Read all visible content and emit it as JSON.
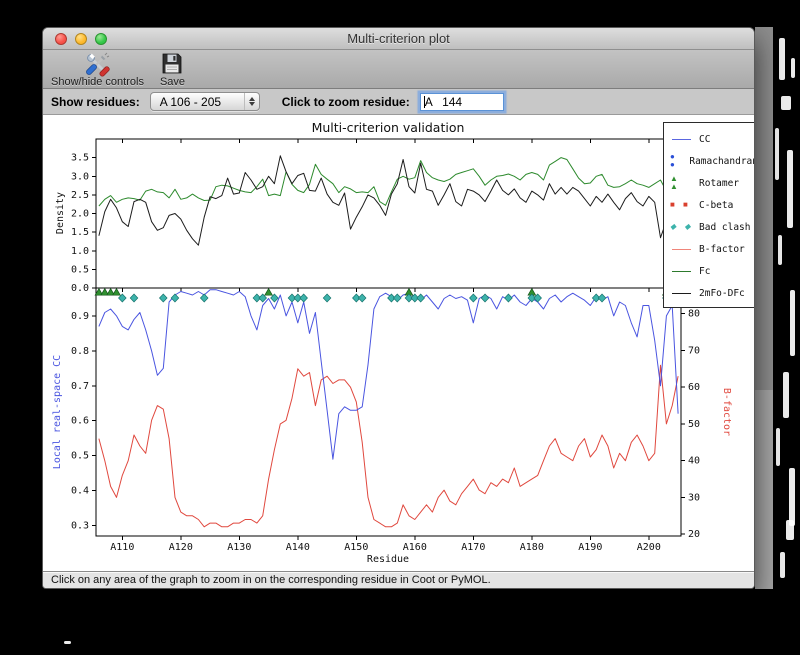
{
  "window": {
    "title": "Multi-criterion plot"
  },
  "toolbar": {
    "buttons": [
      {
        "label": "Show/hide controls",
        "icon": "tools-icon"
      },
      {
        "label": "Save",
        "icon": "save-icon"
      }
    ]
  },
  "controls": {
    "show_residues_label": "Show residues:",
    "show_residues_value": "A 106 - 205",
    "zoom_residue_label": "Click to zoom residue:",
    "zoom_residue_value": "A   144"
  },
  "statusbar": {
    "text": "Click on any area of the graph to zoom in on the corresponding residue in Coot or PyMOL."
  },
  "legend": {
    "entries": [
      {
        "label": "CC",
        "sample": "line",
        "color": "#5a66e0"
      },
      {
        "label": "Ramachandran",
        "sample": "dots",
        "color": "#2a4fd7"
      },
      {
        "label": "Rotamer",
        "sample": "triangles",
        "color": "#2f8f2f"
      },
      {
        "label": "C-beta",
        "sample": "squares",
        "color": "#d9402e"
      },
      {
        "label": "Bad clash",
        "sample": "diamonds",
        "color": "#3db3ab"
      },
      {
        "label": "B-factor",
        "sample": "line",
        "color": "#f0857a"
      },
      {
        "label": "Fc",
        "sample": "line",
        "color": "#2d7a2d"
      },
      {
        "label": "2mFo-DFc",
        "sample": "line",
        "color": "#1c1c1c"
      }
    ]
  },
  "chart_data": [
    {
      "type": "line",
      "title": "Multi-criterion validation",
      "ylabel": "Density",
      "ylim": [
        0,
        4
      ],
      "yticks": [
        0.0,
        0.5,
        1.0,
        1.5,
        2.0,
        2.5,
        3.0,
        3.5
      ],
      "xlim": [
        105.5,
        205.5
      ],
      "x_start": 106,
      "series": [
        {
          "name": "Fc",
          "color": "#2d8a2d",
          "values": [
            2.2,
            2.38,
            2.48,
            2.3,
            2.38,
            2.42,
            2.4,
            2.36,
            2.6,
            2.65,
            2.58,
            2.56,
            2.42,
            2.65,
            2.38,
            2.42,
            2.52,
            2.42,
            2.35,
            2.36,
            2.72,
            2.76,
            2.74,
            2.68,
            2.62,
            2.58,
            2.56,
            2.72,
            2.92,
            2.48,
            2.52,
            2.48,
            3.12,
            2.78,
            2.62,
            2.56,
            2.78,
            3.32,
            3.05,
            2.92,
            2.8,
            2.56,
            2.72,
            2.66,
            2.56,
            2.58,
            2.56,
            2.72,
            2.32,
            2.22,
            2.58,
            2.92,
            3.0,
            2.92,
            2.96,
            3.42,
            3.1,
            2.96,
            2.9,
            2.86,
            2.92,
            3.05,
            3.1,
            3.15,
            3.2,
            3.0,
            2.76,
            2.9,
            3.0,
            3.02,
            3.06,
            3.0,
            2.9,
            3.05,
            3.1,
            3.05,
            2.9,
            3.3,
            3.4,
            3.5,
            3.45,
            3.2,
            2.95,
            2.8,
            2.82,
            3.0,
            3.05,
            2.76,
            2.7,
            2.72,
            2.8,
            2.9,
            2.8,
            2.76,
            2.7,
            2.8,
            2.9,
            2.6,
            2.2,
            2.76
          ]
        },
        {
          "name": "2mFo-DFc",
          "color": "#1c1c1c",
          "values": [
            1.4,
            2.05,
            2.38,
            2.15,
            1.78,
            1.65,
            2.32,
            2.38,
            2.3,
            1.78,
            1.55,
            1.62,
            1.95,
            2.0,
            1.85,
            1.55,
            1.32,
            1.15,
            1.9,
            2.45,
            2.4,
            2.48,
            2.95,
            2.52,
            2.55,
            3.1,
            2.9,
            2.65,
            2.72,
            3.0,
            2.8,
            3.55,
            3.12,
            2.8,
            3.02,
            3.08,
            2.62,
            2.6,
            2.95,
            2.52,
            2.3,
            2.22,
            2.55,
            1.58,
            1.9,
            2.18,
            2.5,
            2.42,
            2.22,
            1.95,
            2.52,
            2.8,
            3.45,
            2.72,
            2.55,
            3.35,
            2.65,
            2.6,
            2.22,
            2.5,
            2.8,
            2.32,
            2.2,
            2.65,
            2.6,
            2.5,
            2.32,
            2.6,
            2.9,
            2.62,
            2.5,
            2.66,
            2.42,
            2.3,
            2.6,
            2.5,
            2.36,
            2.8,
            2.52,
            2.7,
            2.52,
            2.7,
            2.6,
            2.4,
            2.2,
            2.46,
            2.3,
            2.52,
            2.3,
            2.1,
            2.4,
            2.56,
            2.32,
            2.2,
            2.46,
            2.3,
            1.35,
            1.8,
            1.15,
            2.2
          ]
        }
      ]
    },
    {
      "type": "line+scatter",
      "xlabel": "Residue",
      "ylabel_left": "Local real-space CC",
      "ylabel_right": "B-factor",
      "ylim_left": [
        0.27,
        0.98
      ],
      "ylim_right": [
        19.5,
        87
      ],
      "yticks_left": [
        0.3,
        0.4,
        0.5,
        0.6,
        0.7,
        0.8,
        0.9
      ],
      "yticks_right": [
        20,
        30,
        40,
        50,
        60,
        70,
        80
      ],
      "xlim": [
        105.5,
        205.5
      ],
      "xtick_values": [
        110,
        120,
        130,
        140,
        150,
        160,
        170,
        180,
        190,
        200
      ],
      "xtick_labels": [
        "A110",
        "A120",
        "A130",
        "A140",
        "A150",
        "A160",
        "A170",
        "A180",
        "A190",
        "A200"
      ],
      "x_start": 106,
      "series": [
        {
          "name": "CC",
          "axis": "left",
          "color": "#4a55e0",
          "values": [
            0.87,
            0.91,
            0.92,
            0.9,
            0.87,
            0.86,
            0.89,
            0.91,
            0.86,
            0.8,
            0.73,
            0.75,
            0.94,
            0.96,
            0.97,
            0.965,
            0.96,
            0.97,
            0.96,
            0.975,
            0.975,
            0.97,
            0.965,
            0.96,
            0.97,
            0.955,
            0.9,
            0.86,
            0.93,
            0.95,
            0.92,
            0.96,
            0.9,
            0.94,
            0.88,
            0.94,
            0.85,
            0.91,
            0.77,
            0.63,
            0.49,
            0.62,
            0.64,
            0.63,
            0.63,
            0.64,
            0.76,
            0.92,
            0.955,
            0.965,
            0.955,
            0.945,
            0.96,
            0.965,
            0.955,
            0.945,
            0.96,
            0.94,
            0.92,
            0.95,
            0.96,
            0.95,
            0.955,
            0.945,
            0.88,
            0.95,
            0.96,
            0.95,
            0.92,
            0.955,
            0.945,
            0.96,
            0.94,
            0.93,
            0.95,
            0.94,
            0.92,
            0.95,
            0.96,
            0.94,
            0.955,
            0.965,
            0.955,
            0.945,
            0.93,
            0.955,
            0.945,
            0.955,
            0.9,
            0.94,
            0.93,
            0.88,
            0.84,
            0.93,
            0.93,
            0.83,
            0.7,
            0.9,
            0.93,
            0.62
          ]
        },
        {
          "name": "B-factor",
          "axis": "right",
          "color": "#e0483e",
          "values": [
            46,
            40,
            33,
            30,
            36,
            40,
            47,
            44,
            42,
            51,
            55,
            54,
            46,
            30,
            26,
            25,
            25,
            24,
            22,
            23,
            23,
            22,
            22,
            23,
            23,
            24,
            24,
            23,
            25,
            35,
            43,
            50,
            51,
            57,
            65,
            63,
            64,
            55,
            62,
            63,
            61,
            62,
            62,
            60,
            56,
            45,
            30,
            24,
            23,
            22,
            22,
            23,
            28,
            25,
            24,
            26,
            28,
            26,
            30,
            32,
            29,
            28,
            31,
            33,
            35,
            32,
            31,
            34,
            33,
            35,
            34,
            38,
            33,
            34,
            35,
            36,
            40,
            44,
            46,
            42,
            41,
            40,
            44,
            46,
            41,
            43,
            47,
            44,
            38,
            42,
            40,
            45,
            47,
            44,
            40,
            42,
            66,
            50,
            55,
            63
          ]
        }
      ],
      "markers": [
        {
          "name": "Rotamer",
          "shape": "triangle",
          "color": "#2f8f2f",
          "edge": "#14541a",
          "residues": [
            106,
            107,
            108,
            109,
            135,
            159,
            180,
            203
          ]
        },
        {
          "name": "Bad clash",
          "shape": "diamond",
          "color": "#3db3ab",
          "edge": "#17736c",
          "residues": [
            110,
            112,
            117,
            119,
            124,
            133,
            134,
            136,
            139,
            140,
            141,
            145,
            150,
            151,
            156,
            157,
            159,
            160,
            161,
            170,
            172,
            176,
            180,
            181,
            191,
            192,
            203,
            204
          ]
        }
      ]
    }
  ]
}
